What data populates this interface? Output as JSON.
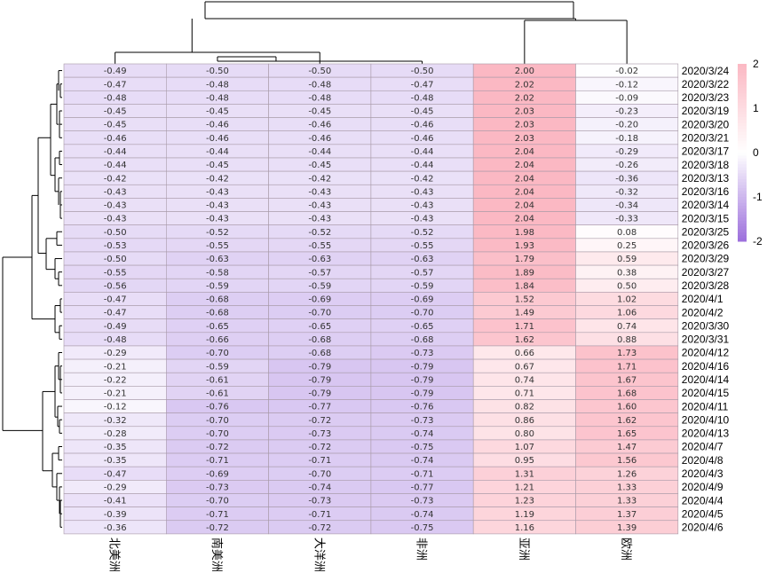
{
  "chart_data": {
    "type": "heatmap",
    "columns": [
      "北美洲",
      "南美洲",
      "大洋洲",
      "非洲",
      "亚洲",
      "欧洲"
    ],
    "rows": [
      "2020/3/24",
      "2020/3/22",
      "2020/3/23",
      "2020/3/19",
      "2020/3/20",
      "2020/3/21",
      "2020/3/17",
      "2020/3/18",
      "2020/3/13",
      "2020/3/16",
      "2020/3/14",
      "2020/3/15",
      "2020/3/25",
      "2020/3/26",
      "2020/3/29",
      "2020/3/27",
      "2020/3/28",
      "2020/4/1",
      "2020/4/2",
      "2020/3/30",
      "2020/3/31",
      "2020/4/12",
      "2020/4/16",
      "2020/4/14",
      "2020/4/15",
      "2020/4/11",
      "2020/4/10",
      "2020/4/13",
      "2020/4/7",
      "2020/4/8",
      "2020/4/3",
      "2020/4/9",
      "2020/4/4",
      "2020/4/5",
      "2020/4/6"
    ],
    "values": [
      [
        -0.49,
        -0.5,
        -0.5,
        -0.5,
        2.0,
        -0.02
      ],
      [
        -0.47,
        -0.48,
        -0.48,
        -0.47,
        2.02,
        -0.12
      ],
      [
        -0.48,
        -0.48,
        -0.48,
        -0.48,
        2.02,
        -0.09
      ],
      [
        -0.45,
        -0.45,
        -0.45,
        -0.45,
        2.03,
        -0.23
      ],
      [
        -0.45,
        -0.46,
        -0.46,
        -0.46,
        2.03,
        -0.2
      ],
      [
        -0.46,
        -0.46,
        -0.46,
        -0.46,
        2.03,
        -0.18
      ],
      [
        -0.44,
        -0.44,
        -0.44,
        -0.44,
        2.04,
        -0.29
      ],
      [
        -0.44,
        -0.45,
        -0.45,
        -0.44,
        2.04,
        -0.26
      ],
      [
        -0.42,
        -0.42,
        -0.42,
        -0.42,
        2.04,
        -0.36
      ],
      [
        -0.43,
        -0.43,
        -0.43,
        -0.43,
        2.04,
        -0.32
      ],
      [
        -0.43,
        -0.43,
        -0.43,
        -0.43,
        2.04,
        -0.34
      ],
      [
        -0.43,
        -0.43,
        -0.43,
        -0.43,
        2.04,
        -0.33
      ],
      [
        -0.5,
        -0.52,
        -0.52,
        -0.52,
        1.98,
        0.08
      ],
      [
        -0.53,
        -0.55,
        -0.55,
        -0.55,
        1.93,
        0.25
      ],
      [
        -0.5,
        -0.63,
        -0.63,
        -0.63,
        1.79,
        0.59
      ],
      [
        -0.55,
        -0.58,
        -0.57,
        -0.57,
        1.89,
        0.38
      ],
      [
        -0.56,
        -0.59,
        -0.59,
        -0.59,
        1.84,
        0.5
      ],
      [
        -0.47,
        -0.68,
        -0.69,
        -0.69,
        1.52,
        1.02
      ],
      [
        -0.47,
        -0.68,
        -0.7,
        -0.7,
        1.49,
        1.06
      ],
      [
        -0.49,
        -0.65,
        -0.65,
        -0.65,
        1.71,
        0.74
      ],
      [
        -0.48,
        -0.66,
        -0.68,
        -0.68,
        1.62,
        0.88
      ],
      [
        -0.29,
        -0.7,
        -0.68,
        -0.73,
        0.66,
        1.73
      ],
      [
        -0.21,
        -0.59,
        -0.79,
        -0.79,
        0.67,
        1.71
      ],
      [
        -0.22,
        -0.61,
        -0.79,
        -0.79,
        0.74,
        1.67
      ],
      [
        -0.21,
        -0.61,
        -0.79,
        -0.79,
        0.71,
        1.68
      ],
      [
        -0.12,
        -0.76,
        -0.77,
        -0.76,
        0.82,
        1.6
      ],
      [
        -0.32,
        -0.7,
        -0.72,
        -0.73,
        0.86,
        1.62
      ],
      [
        -0.28,
        -0.7,
        -0.73,
        -0.74,
        0.8,
        1.65
      ],
      [
        -0.35,
        -0.72,
        -0.72,
        -0.75,
        1.07,
        1.47
      ],
      [
        -0.35,
        -0.71,
        -0.71,
        -0.74,
        0.95,
        1.56
      ],
      [
        -0.47,
        -0.69,
        -0.7,
        -0.71,
        1.31,
        1.26
      ],
      [
        -0.29,
        -0.73,
        -0.74,
        -0.77,
        1.21,
        1.33
      ],
      [
        -0.41,
        -0.7,
        -0.73,
        -0.73,
        1.23,
        1.33
      ],
      [
        -0.39,
        -0.71,
        -0.71,
        -0.74,
        1.19,
        1.37
      ],
      [
        -0.36,
        -0.72,
        -0.72,
        -0.75,
        1.16,
        1.39
      ]
    ],
    "color_scale": {
      "min": -2,
      "max": 2,
      "low_color": "#9c6fdc",
      "mid_color": "#ffffff",
      "high_color": "#fbb8c3",
      "ticks": [
        "2",
        "1",
        "0",
        "-1",
        "-2"
      ]
    },
    "grid_color": "#a89aa8",
    "dendrogram": {
      "rows": true,
      "columns": true
    }
  }
}
